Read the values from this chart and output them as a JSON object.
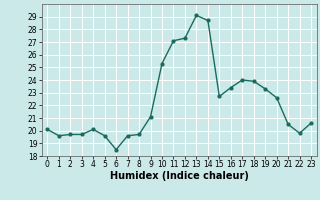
{
  "x": [
    0,
    1,
    2,
    3,
    4,
    5,
    6,
    7,
    8,
    9,
    10,
    11,
    12,
    13,
    14,
    15,
    16,
    17,
    18,
    19,
    20,
    21,
    22,
    23
  ],
  "y": [
    20.1,
    19.6,
    19.7,
    19.7,
    20.1,
    19.6,
    18.5,
    19.6,
    19.7,
    21.1,
    25.3,
    27.1,
    27.3,
    29.1,
    28.7,
    22.7,
    23.4,
    24.0,
    23.9,
    23.3,
    22.6,
    20.5,
    19.8,
    20.6
  ],
  "line_color": "#1a6b5e",
  "marker": "o",
  "marker_size": 2,
  "linewidth": 1.0,
  "xlabel": "Humidex (Indice chaleur)",
  "ylim": [
    18,
    30
  ],
  "xlim": [
    -0.5,
    23.5
  ],
  "yticks": [
    18,
    19,
    20,
    21,
    22,
    23,
    24,
    25,
    26,
    27,
    28,
    29
  ],
  "xticks": [
    0,
    1,
    2,
    3,
    4,
    5,
    6,
    7,
    8,
    9,
    10,
    11,
    12,
    13,
    14,
    15,
    16,
    17,
    18,
    19,
    20,
    21,
    22,
    23
  ],
  "background_color": "#cce9e9",
  "grid_color": "#ffffff",
  "tick_fontsize": 5.5,
  "xlabel_fontsize": 7,
  "xlabel_fontweight": "bold"
}
